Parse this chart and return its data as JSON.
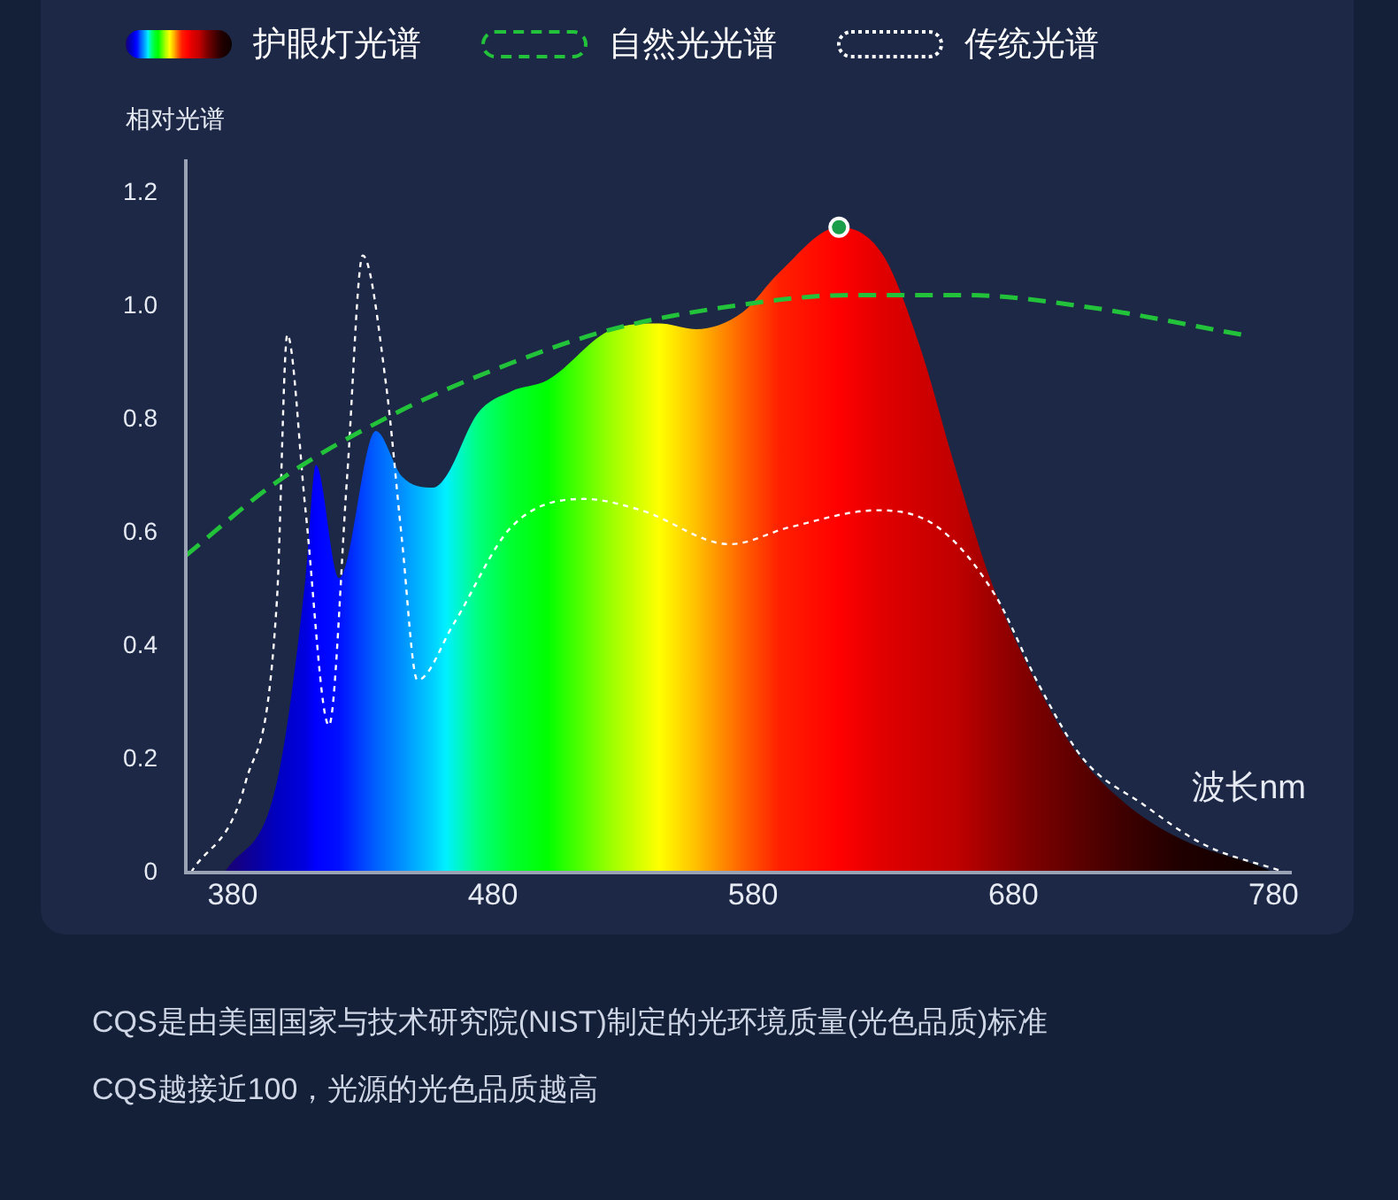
{
  "chart_data": {
    "type": "area",
    "xlabel": "波长nm",
    "ylabel": "相对光谱",
    "xlim": [
      362,
      787
    ],
    "xticks": [
      380,
      480,
      580,
      680,
      780
    ],
    "ylim": [
      0,
      1.26
    ],
    "yticks": [
      0,
      0.2,
      0.4,
      0.6,
      0.8,
      {
        "value": 1,
        "label": "1.0"
      },
      1.2
    ],
    "grid": false,
    "legend": "top",
    "marker": "none",
    "series": [
      {
        "name": "护眼灯光谱",
        "x": [
          377,
          397,
          408,
          412,
          421,
          435,
          445,
          457,
          462,
          474,
          487,
          501,
          526,
          544,
          558,
          576,
          590,
          613,
          630,
          644,
          658,
          671,
          685,
          703,
          721,
          744,
          775,
          780
        ],
        "values": [
          0,
          0.16,
          0.52,
          0.72,
          0.52,
          0.78,
          0.7,
          0.68,
          0.7,
          0.81,
          0.85,
          0.87,
          0.96,
          0.97,
          0.96,
          0.99,
          1.06,
          1.14,
          1.09,
          0.93,
          0.71,
          0.52,
          0.37,
          0.22,
          0.13,
          0.06,
          0.01,
          0
        ],
        "colors": [
          "#1a0070",
          "#0000c0",
          "#0000e0",
          "#0000ff",
          "#0010ff",
          "#0060ff",
          "#0090ff",
          "#00d0ff",
          "#00f0ff",
          "#00ff80",
          "#00ff30",
          "#00ff00",
          "#a0ff00",
          "#ffff00",
          "#ffc000",
          "#ff6000",
          "#ff2000",
          "#ff0000",
          "#e00000",
          "#d00000",
          "#c00000",
          "#a00000",
          "#800000",
          "#600000",
          "#400000",
          "#200000",
          "#100000",
          "#000000"
        ]
      },
      {
        "name": "自然光光谱",
        "type": "line",
        "line_style": "dashed",
        "color": "#22c33a",
        "x": [
          362,
          397,
          442,
          487,
          526,
          571,
          617,
          662,
          707,
          768
        ],
        "values": [
          0.56,
          0.69,
          0.81,
          0.9,
          0.96,
          1,
          1.02,
          1.02,
          1,
          0.95
        ]
      },
      {
        "name": "传统光谱",
        "type": "line",
        "line_style": "dotted",
        "color": "#ffffff",
        "x": [
          364,
          385,
          397,
          401,
          408,
          417,
          424,
          430,
          439,
          445,
          451,
          465,
          487,
          515,
          537,
          571,
          594,
          628,
          651,
          673,
          690,
          707,
          730,
          753,
          785
        ],
        "values": [
          0,
          0.16,
          0.48,
          0.95,
          0.64,
          0.26,
          0.7,
          1.09,
          0.86,
          0.59,
          0.34,
          0.44,
          0.61,
          0.66,
          0.64,
          0.58,
          0.61,
          0.64,
          0.61,
          0.49,
          0.33,
          0.2,
          0.12,
          0.05,
          0
        ]
      },
      {
        "type": "scatter",
        "marker": "circle",
        "color": "#1a9e4a",
        "x": [
          613
        ],
        "values": [
          1.14
        ]
      }
    ],
    "annotations": [
      "CQS是由美国国家与技术研究院(NIST)制定的光环境质量(光色品质)标准",
      "CQS越接近100，光源的光色品质越高"
    ]
  }
}
